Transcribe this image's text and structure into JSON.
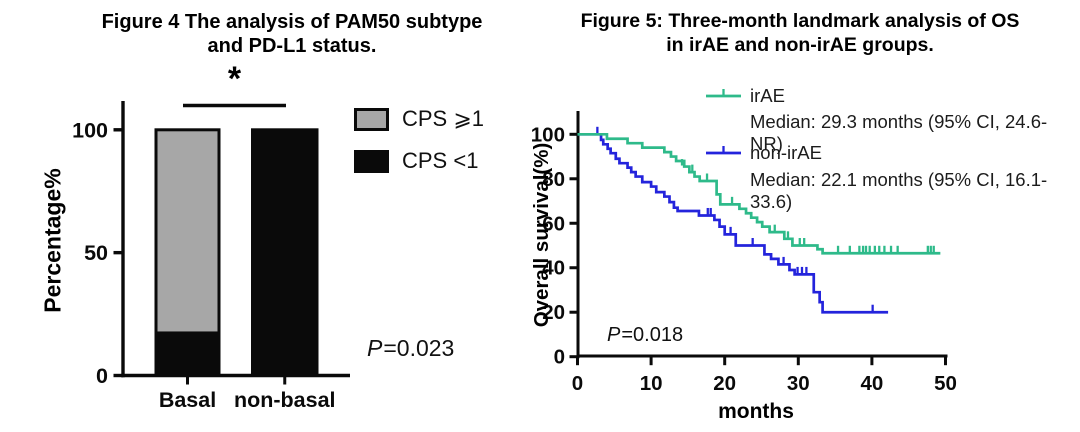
{
  "chart_data": [
    {
      "type": "bar",
      "stacked": true,
      "title_lines": [
        "Figure 4 The analysis of PAM50 subtype",
        "and PD-L1 status."
      ],
      "ylabel": "Percentage%",
      "categories": [
        "Basal",
        "non-basal"
      ],
      "yticks": [
        0,
        50,
        100
      ],
      "ylim": [
        0,
        110
      ],
      "series": [
        {
          "name": "CPS <1",
          "color": "#0a0a0a",
          "values": [
            18,
            100
          ]
        },
        {
          "name": "CPS ⩾1",
          "color": "#a7a7a7",
          "values": [
            82,
            0
          ]
        }
      ],
      "legend": [
        {
          "label": "CPS ⩾1",
          "color": "#a7a7a7"
        },
        {
          "label": "CPS <1",
          "color": "#0a0a0a"
        }
      ],
      "significance": "*",
      "p_label": "P",
      "p_value": "=0.023"
    },
    {
      "type": "line",
      "subtype": "kaplan_meier",
      "title_lines": [
        "Figure 5: Three-month landmark analysis of OS",
        "in irAE and non-irAE groups."
      ],
      "xlabel": "months",
      "ylabel": "Overall survival(%)",
      "xticks": [
        0,
        10,
        20,
        30,
        40,
        50
      ],
      "yticks": [
        0,
        20,
        40,
        60,
        80,
        100
      ],
      "xlim": [
        0,
        52
      ],
      "ylim": [
        0,
        110
      ],
      "p_label": "P",
      "p_value": "=0.018",
      "series": [
        {
          "name": "irAE",
          "median_text": "Median: 29.3 months (95% CI, 24.6-NR)",
          "color": "#2eba8a",
          "steps": [
            [
              0,
              100
            ],
            [
              4,
              98
            ],
            [
              6.8,
              96
            ],
            [
              8.8,
              94
            ],
            [
              11.8,
              92
            ],
            [
              12.7,
              90
            ],
            [
              13.4,
              88
            ],
            [
              14.5,
              85.5
            ],
            [
              15.2,
              83
            ],
            [
              15.9,
              81
            ],
            [
              16.6,
              79
            ],
            [
              18.9,
              73
            ],
            [
              19.4,
              68.5
            ],
            [
              22,
              66.5
            ],
            [
              22.9,
              64.5
            ],
            [
              23.6,
              62.5
            ],
            [
              24.4,
              60.5
            ],
            [
              25.1,
              58.5
            ],
            [
              26.1,
              56
            ],
            [
              28.1,
              53
            ],
            [
              29.2,
              50
            ],
            [
              32.6,
              48.3
            ],
            [
              33.3,
              46.5
            ]
          ],
          "end_x": 49.3,
          "censors": [
            [
              14.2,
              85.5
            ],
            [
              15.6,
              83
            ],
            [
              17.6,
              79
            ],
            [
              21,
              68.5
            ],
            [
              26.8,
              56
            ],
            [
              28.6,
              53
            ],
            [
              30.2,
              50
            ],
            [
              30.8,
              50
            ],
            [
              35.4,
              46.5
            ],
            [
              37,
              46.5
            ],
            [
              38.3,
              46.5
            ],
            [
              38.8,
              46.5
            ],
            [
              39.2,
              46.5
            ],
            [
              39.7,
              46.5
            ],
            [
              40.4,
              46.5
            ],
            [
              41,
              46.5
            ],
            [
              41.7,
              46.5
            ],
            [
              42.6,
              46.5
            ],
            [
              43.5,
              46.5
            ],
            [
              47.6,
              46.5
            ],
            [
              48,
              46.5
            ],
            [
              48.4,
              46.5
            ]
          ]
        },
        {
          "name": "non-irAE",
          "median_text": "Median: 22.1 months (95% CI, 16.1-33.6)",
          "color": "#2424dc",
          "steps": [
            [
              0,
              100
            ],
            [
              3.2,
              97.5
            ],
            [
              3.5,
              95.5
            ],
            [
              4.1,
              93.5
            ],
            [
              4.5,
              91.5
            ],
            [
              5.2,
              89
            ],
            [
              5.7,
              87
            ],
            [
              6.8,
              85
            ],
            [
              7.3,
              83
            ],
            [
              7.9,
              81
            ],
            [
              8.8,
              78.5
            ],
            [
              10,
              76.5
            ],
            [
              10.7,
              74
            ],
            [
              11.8,
              72
            ],
            [
              12.5,
              69.5
            ],
            [
              13.1,
              67
            ],
            [
              13.6,
              65.5
            ],
            [
              16.5,
              63.5
            ],
            [
              18.6,
              61.5
            ],
            [
              19.3,
              58.5
            ],
            [
              20,
              55
            ],
            [
              21.5,
              50
            ],
            [
              25.4,
              46
            ],
            [
              26.3,
              44
            ],
            [
              27.3,
              41.5
            ],
            [
              28.8,
              39
            ],
            [
              29.5,
              37
            ],
            [
              32.1,
              29
            ],
            [
              32.9,
              24.5
            ],
            [
              33.3,
              20
            ]
          ],
          "end_x": 42.2,
          "censors": [
            [
              2.7,
              100
            ],
            [
              17.7,
              63.5
            ],
            [
              18.1,
              63.5
            ],
            [
              20.8,
              55
            ],
            [
              23.8,
              50
            ],
            [
              28,
              41.5
            ],
            [
              29.9,
              37
            ],
            [
              30.5,
              37
            ],
            [
              31.1,
              37
            ],
            [
              40.1,
              20
            ]
          ]
        }
      ]
    }
  ]
}
